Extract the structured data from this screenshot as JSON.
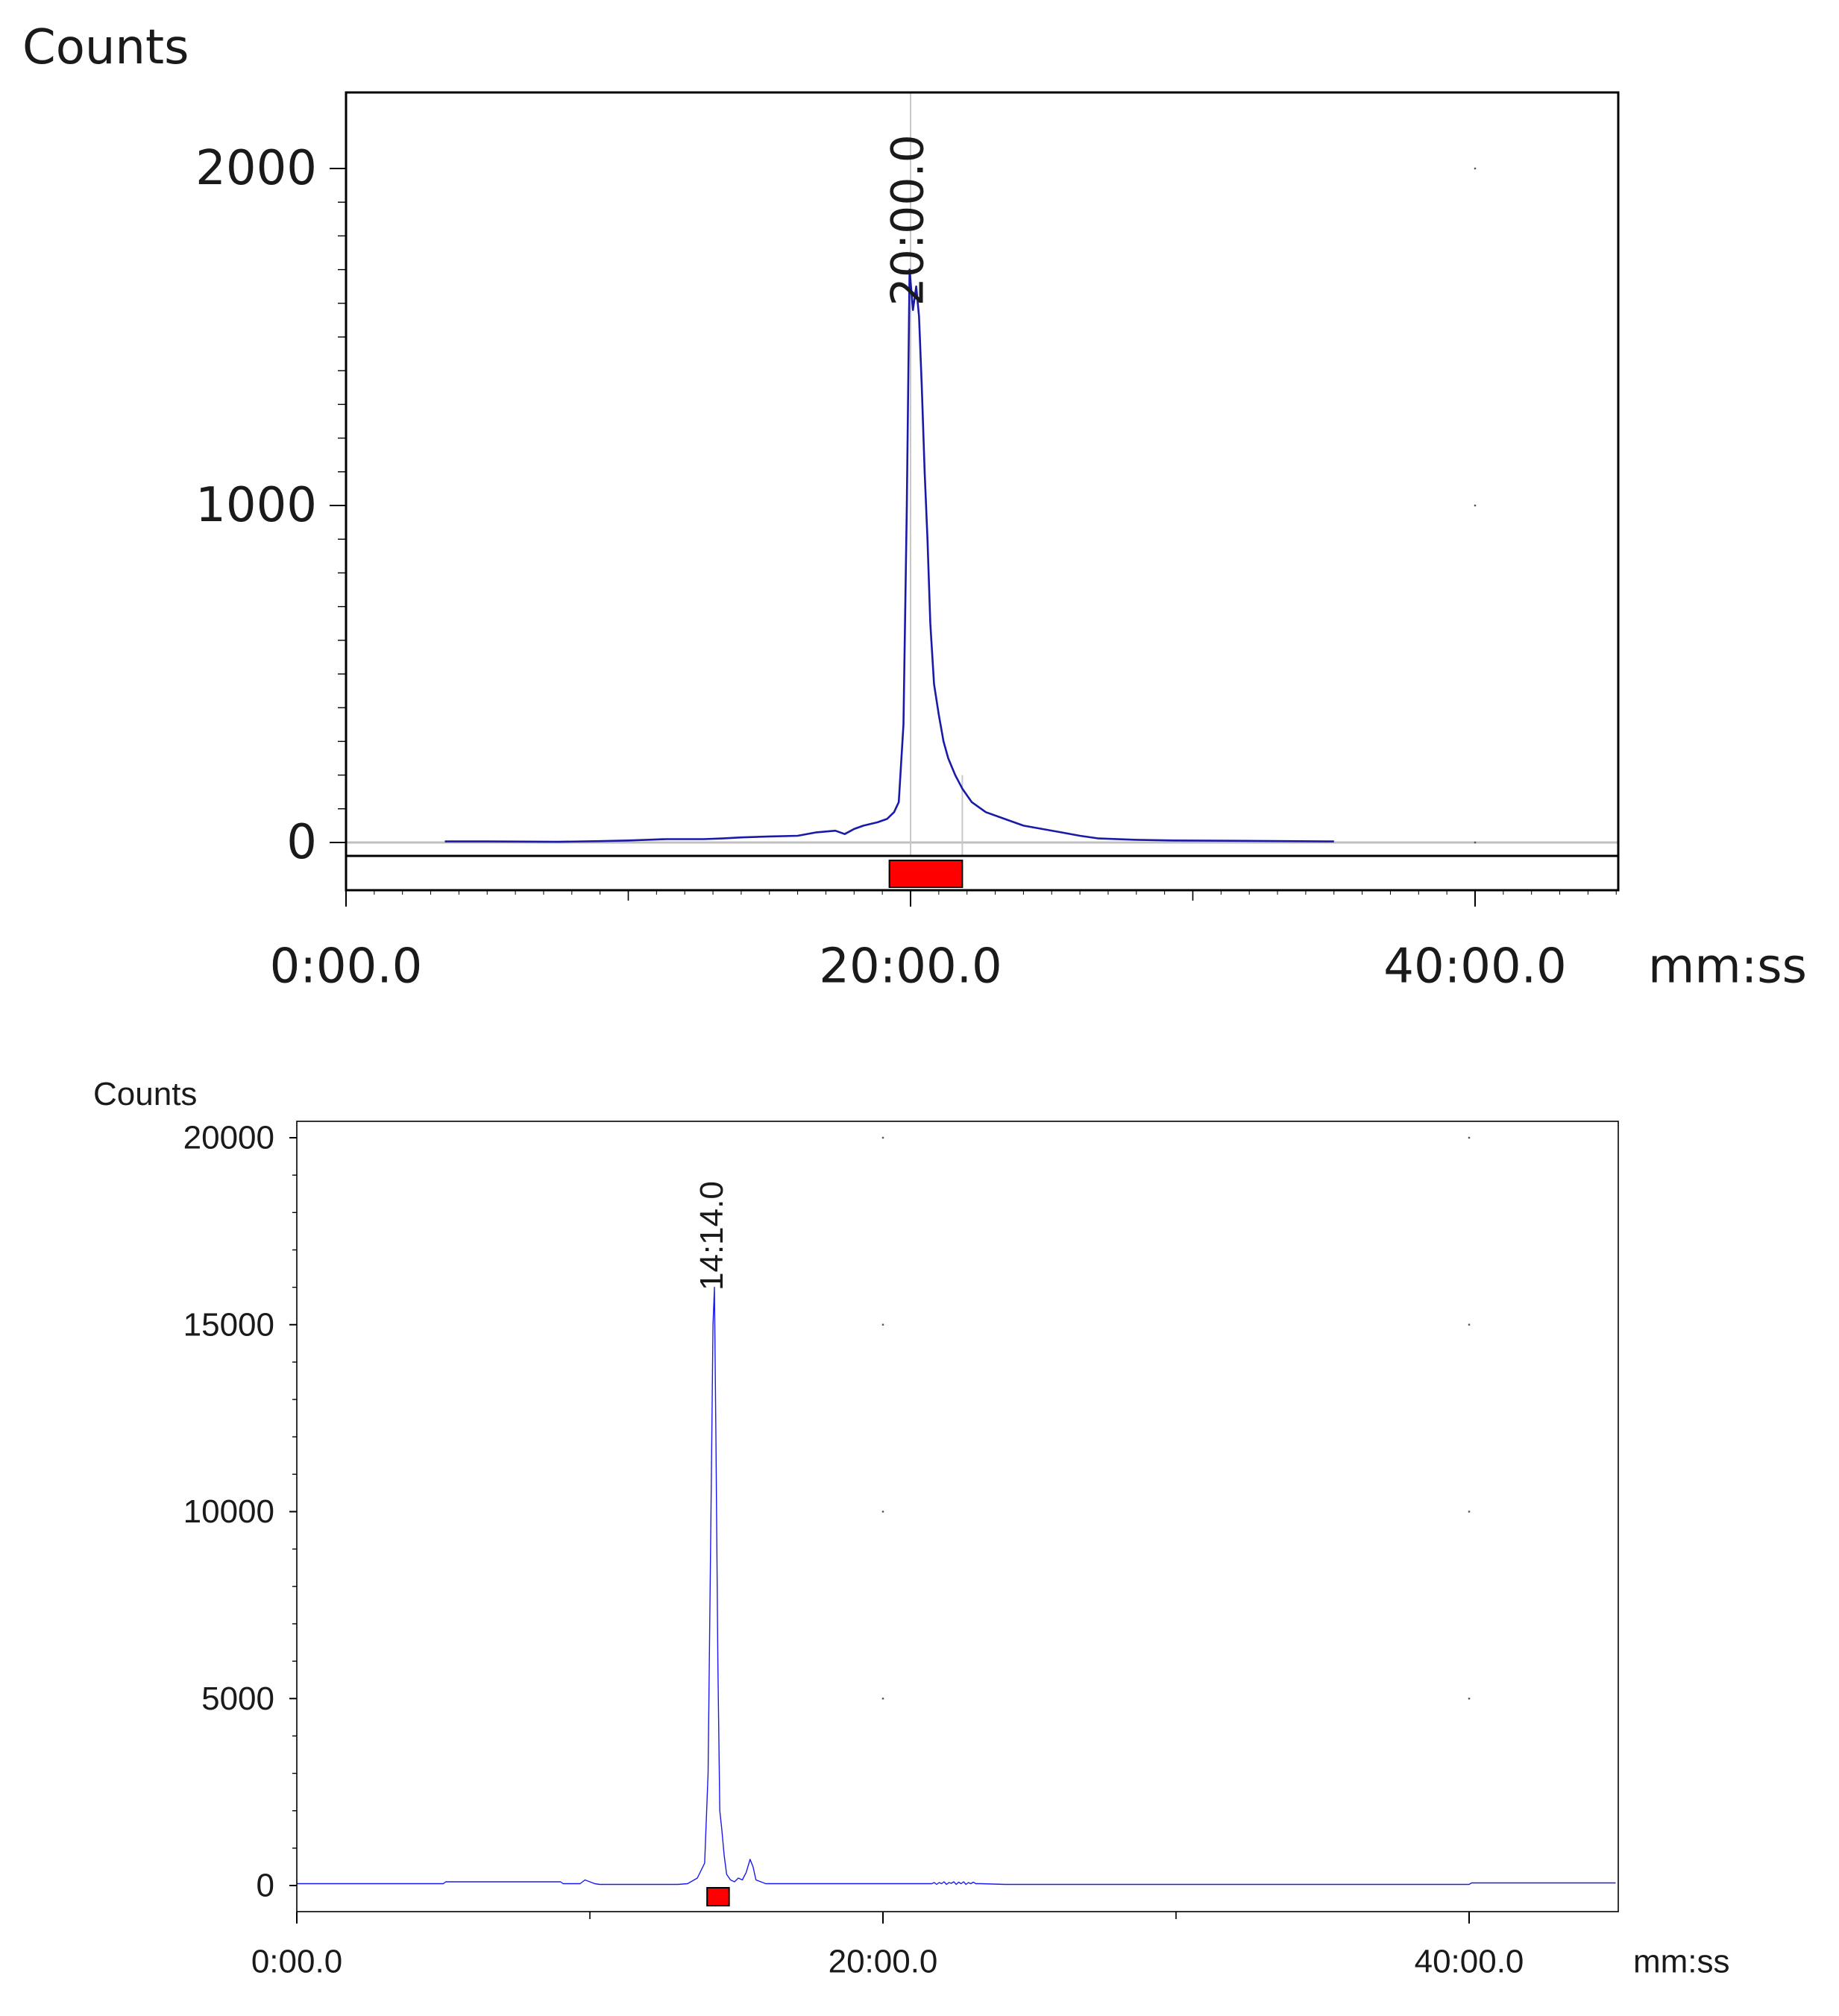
{
  "chart_data": [
    {
      "type": "line",
      "ylabel": "Counts",
      "xunit": "mm:ss",
      "xlim": [
        0,
        2700
      ],
      "ylim": [
        -45,
        2200
      ],
      "x_ticks": [
        0,
        1200,
        2400
      ],
      "x_tick_labels": [
        "0:00.0",
        "20:00.0",
        "40:00.0"
      ],
      "y_ticks": [
        0,
        1000,
        2000
      ],
      "y_tick_labels": [
        "0",
        "1000",
        "2000"
      ],
      "peak_labels": [
        {
          "x": 1200,
          "label": "20:00.0"
        }
      ],
      "marked_interval": {
        "start": 1155,
        "end": 1310
      },
      "grid": false,
      "series_color": "#1a1aa8",
      "marker_color": "#ff0000",
      "series": [
        {
          "x": [
            210,
            300,
            450,
            540,
            600,
            640,
            680,
            720,
            760,
            800,
            840,
            900,
            960,
            1000,
            1040,
            1060,
            1080,
            1100,
            1130,
            1150,
            1165,
            1175,
            1185,
            1192,
            1198,
            1205,
            1212,
            1218,
            1224,
            1230,
            1236,
            1242,
            1250,
            1260,
            1270,
            1280,
            1295,
            1310,
            1330,
            1360,
            1400,
            1440,
            1480,
            1520,
            1560,
            1600,
            1680,
            1760,
            1880,
            2000,
            2100
          ],
          "y": [
            3,
            3,
            2,
            4,
            6,
            8,
            10,
            10,
            10,
            12,
            15,
            18,
            20,
            30,
            35,
            25,
            40,
            50,
            60,
            70,
            90,
            120,
            350,
            1000,
            1700,
            1580,
            1650,
            1560,
            1350,
            1100,
            900,
            650,
            470,
            380,
            300,
            250,
            200,
            160,
            120,
            90,
            70,
            50,
            40,
            30,
            20,
            12,
            8,
            6,
            5,
            4,
            3
          ]
        }
      ]
    },
    {
      "type": "line",
      "ylabel": "Counts",
      "xunit": "mm:ss",
      "xlim": [
        0,
        2700
      ],
      "ylim": [
        -600,
        20000
      ],
      "x_ticks": [
        0,
        1200,
        2400
      ],
      "x_tick_labels": [
        "0:00.0",
        "20:00.0",
        "40:00.0"
      ],
      "y_ticks": [
        0,
        5000,
        10000,
        15000,
        20000
      ],
      "y_tick_labels": [
        "0",
        "5000",
        "10000",
        "15000",
        "20000"
      ],
      "peak_labels": [
        {
          "x": 854,
          "label": "14:14.0"
        }
      ],
      "marked_interval": {
        "start": 840,
        "end": 885
      },
      "grid": false,
      "series_color": "#1a1aee",
      "marker_color": "#ff0000",
      "series": [
        {
          "x": [
            0,
            300,
            305,
            540,
            545,
            580,
            590,
            600,
            610,
            620,
            780,
            800,
            820,
            835,
            842,
            848,
            852,
            855,
            858,
            862,
            866,
            870,
            875,
            880,
            888,
            896,
            904,
            912,
            920,
            928,
            934,
            940,
            950,
            960,
            1000,
            1300,
            1305,
            1310,
            1315,
            1320,
            1325,
            1330,
            1335,
            1340,
            1345,
            1350,
            1355,
            1360,
            1365,
            1370,
            1375,
            1380,
            1385,
            1390,
            1400,
            1450,
            2400,
            2405,
            2700
          ],
          "y": [
            50,
            50,
            100,
            100,
            50,
            50,
            150,
            100,
            50,
            30,
            30,
            50,
            200,
            600,
            3000,
            10000,
            15000,
            16000,
            12000,
            6000,
            2000,
            1500,
            800,
            300,
            150,
            100,
            200,
            150,
            350,
            700,
            500,
            150,
            100,
            50,
            50,
            50,
            80,
            30,
            80,
            50,
            100,
            30,
            80,
            60,
            100,
            30,
            90,
            50,
            100,
            30,
            80,
            50,
            90,
            50,
            50,
            30,
            30,
            70,
            70
          ]
        }
      ]
    }
  ]
}
